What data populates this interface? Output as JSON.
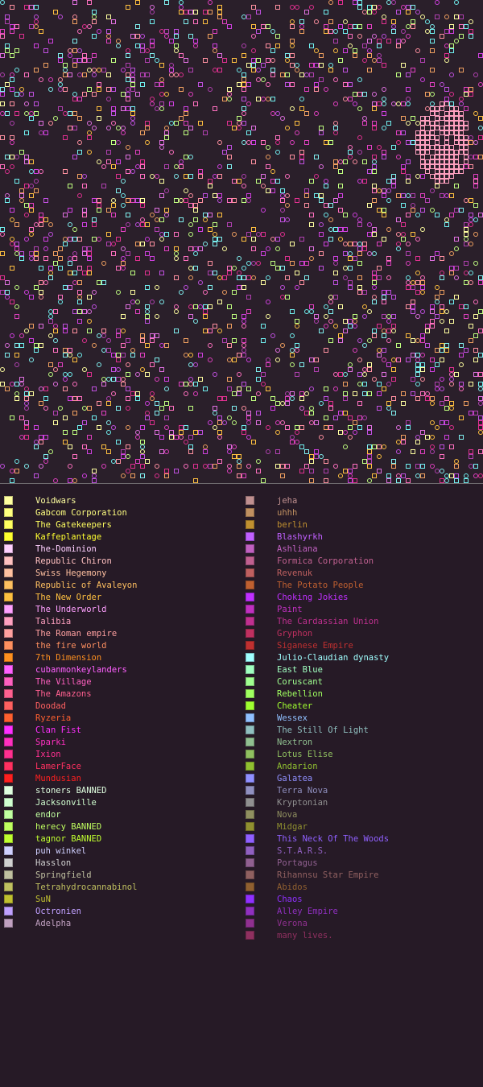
{
  "map": {
    "background": "#2a1f2a",
    "clusters": [
      {
        "name": "Blashyrkh",
        "color": "#c050e0"
      },
      {
        "name": "Sparki",
        "color": "#e03090"
      },
      {
        "name": "Voidwars",
        "color": "#ffffa0"
      },
      {
        "name": "Julio-Claudian dynasty",
        "color": "#80f0f0"
      },
      {
        "name": "The New Order",
        "color": "#ffc040"
      }
    ]
  },
  "legend": {
    "left": [
      {
        "name": "Voidwars",
        "color": "#ffffa0"
      },
      {
        "name": "Gabcom Corporation",
        "color": "#ffff80"
      },
      {
        "name": "The Gatekeepers",
        "color": "#ffff60"
      },
      {
        "name": "Kaffeplantage",
        "color": "#ffff30"
      },
      {
        "name": "The-Dominion",
        "color": "#ffd0ff"
      },
      {
        "name": "Republic Chiron",
        "color": "#ffc0c0"
      },
      {
        "name": "Swiss Hegemony",
        "color": "#ffc0a0"
      },
      {
        "name": "Republic of Avaleyon",
        "color": "#ffc060"
      },
      {
        "name": "The New Order",
        "color": "#ffc040"
      },
      {
        "name": "The Underworld",
        "color": "#ffa0ff"
      },
      {
        "name": "Talibia",
        "color": "#ffa0c0"
      },
      {
        "name": "The Roman empire",
        "color": "#ffa0a0"
      },
      {
        "name": "the fire world",
        "color": "#ff9060"
      },
      {
        "name": "7th Dimension",
        "color": "#ff9020"
      },
      {
        "name": "cubanmonkeylanders",
        "color": "#ff60ff"
      },
      {
        "name": "The Village",
        "color": "#ff60c0"
      },
      {
        "name": "The Amazons",
        "color": "#ff6090"
      },
      {
        "name": "Doodad",
        "color": "#ff6060"
      },
      {
        "name": "Ryzeria",
        "color": "#ff6030"
      },
      {
        "name": "Clan Fist",
        "color": "#ff30ff"
      },
      {
        "name": "Sparki",
        "color": "#ff30c0"
      },
      {
        "name": "Ixion",
        "color": "#ff3090"
      },
      {
        "name": "LamerFace",
        "color": "#ff3060"
      },
      {
        "name": "Mundusian",
        "color": "#ff2020"
      },
      {
        "name": "stoners BANNED",
        "color": "#e0ffe0"
      },
      {
        "name": "Jacksonville",
        "color": "#d0ffd0"
      },
      {
        "name": "endor",
        "color": "#c0ffa0"
      },
      {
        "name": "herecy BANNED",
        "color": "#c0ff60"
      },
      {
        "name": "tagnor BANNED",
        "color": "#c0ff30"
      },
      {
        "name": "puh winkel",
        "color": "#d0d0ff"
      },
      {
        "name": "Hasslon",
        "color": "#d0d0d0"
      },
      {
        "name": "Springfield",
        "color": "#c0c0a0"
      },
      {
        "name": "Tetrahydrocannabinol",
        "color": "#c0c060"
      },
      {
        "name": "SuN",
        "color": "#c0c030"
      },
      {
        "name": "Octronien",
        "color": "#c0a0ff"
      },
      {
        "name": "Adelpha",
        "color": "#c0a0c0"
      }
    ],
    "right": [
      {
        "name": "jeha",
        "color": "#c09090"
      },
      {
        "name": "uhhh",
        "color": "#c09060"
      },
      {
        "name": "berlin",
        "color": "#c09030"
      },
      {
        "name": "Blashyrkh",
        "color": "#c060ff"
      },
      {
        "name": "Ashliana",
        "color": "#c060c0"
      },
      {
        "name": "Formica Corporation",
        "color": "#c06090"
      },
      {
        "name": "Revenuk",
        "color": "#c06060"
      },
      {
        "name": "The Potato People",
        "color": "#c06030"
      },
      {
        "name": "Choking Jokies",
        "color": "#c030ff"
      },
      {
        "name": "Paint",
        "color": "#c030c0"
      },
      {
        "name": "The Cardassian Union",
        "color": "#c03090"
      },
      {
        "name": "Gryphon",
        "color": "#c03060"
      },
      {
        "name": "Siganese Empire",
        "color": "#c03030"
      },
      {
        "name": "Julio-Claudian dynasty",
        "color": "#a0ffff"
      },
      {
        "name": "East Blue",
        "color": "#a0ffc0"
      },
      {
        "name": "Coruscant",
        "color": "#a0ff90"
      },
      {
        "name": "Rebellion",
        "color": "#a0ff60"
      },
      {
        "name": "Cheater",
        "color": "#a0ff30"
      },
      {
        "name": "Wessex",
        "color": "#90c0ff"
      },
      {
        "name": "The Still Of Light",
        "color": "#90c0c0"
      },
      {
        "name": "Nextron",
        "color": "#90c090"
      },
      {
        "name": "Lotus Elise",
        "color": "#90c060"
      },
      {
        "name": "Andarion",
        "color": "#90c030"
      },
      {
        "name": "Galatea",
        "color": "#9090ff"
      },
      {
        "name": "Terra Nova",
        "color": "#9090c0"
      },
      {
        "name": "Kryptonian",
        "color": "#909090"
      },
      {
        "name": "Nova",
        "color": "#909060"
      },
      {
        "name": "Midgar",
        "color": "#909030"
      },
      {
        "name": "This Neck Of The Woods",
        "color": "#9060ff"
      },
      {
        "name": "S.T.A.R.S.",
        "color": "#9060c0"
      },
      {
        "name": "Portagus",
        "color": "#906090"
      },
      {
        "name": "Rihannsu Star Empire",
        "color": "#906060"
      },
      {
        "name": "Abidos",
        "color": "#906030"
      },
      {
        "name": "Chaos",
        "color": "#9030ff"
      },
      {
        "name": "Alley Empire",
        "color": "#9030c0"
      },
      {
        "name": "Verona",
        "color": "#903090"
      },
      {
        "name": "many lives.",
        "color": "#903060"
      }
    ]
  }
}
